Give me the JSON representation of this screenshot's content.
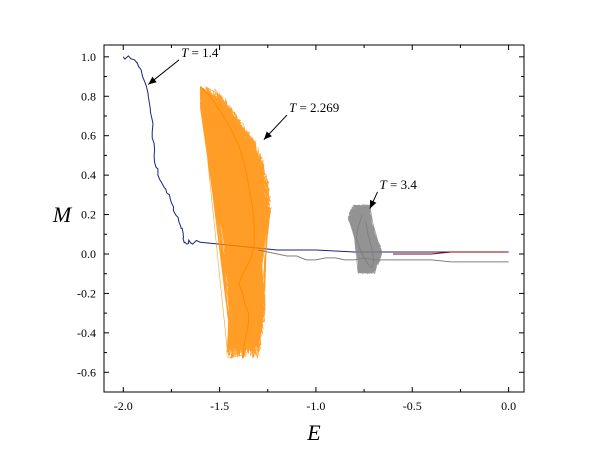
{
  "chart_data": {
    "type": "line",
    "title": "",
    "xlabel": "E",
    "ylabel": "M",
    "xlim": [
      -2.1,
      0.08
    ],
    "ylim": [
      -0.7,
      1.06
    ],
    "grid": false,
    "x_ticks": [
      -2.0,
      -1.5,
      -1.0,
      -0.5,
      0.0
    ],
    "x_tick_labels": [
      "-2.0",
      "-1.5",
      "-1.0",
      "-0.5",
      "0.0"
    ],
    "y_ticks": [
      -0.6,
      -0.4,
      -0.2,
      0.0,
      0.2,
      0.4,
      0.6,
      0.8,
      1.0
    ],
    "y_tick_labels": [
      "-0.6",
      "-0.4",
      "-0.2",
      "0.0",
      "0.2",
      "0.4",
      "0.6",
      "0.8",
      "1.0"
    ],
    "annotations": [
      {
        "var": "T",
        "text": " = 1.4",
        "x": -1.7,
        "y": 1.0,
        "arrow_to": [
          -1.87,
          0.86
        ]
      },
      {
        "var": "T",
        "text": " = 2.269",
        "x": -1.14,
        "y": 0.72,
        "arrow_to": [
          -1.27,
          0.58
        ]
      },
      {
        "var": "T",
        "text": " = 3.4",
        "x": -0.67,
        "y": 0.33,
        "arrow_to": [
          -0.72,
          0.23
        ]
      }
    ],
    "series": [
      {
        "color": "#1a237e",
        "style": "trace",
        "x": [
          -2.0,
          -1.99,
          -1.96,
          -1.93,
          -1.92,
          -1.9,
          -1.88,
          -1.87,
          -1.86,
          -1.85,
          -1.85,
          -1.84,
          -1.84,
          -1.83,
          -1.82,
          -1.8,
          -1.78,
          -1.76,
          -1.75,
          -1.74,
          -1.72,
          -1.71,
          -1.7,
          -1.69,
          -1.69,
          -1.68,
          -1.67,
          -1.66,
          -1.64,
          -1.6,
          -1.5,
          -1.4,
          -1.3,
          -1.2,
          -1.0,
          -0.8,
          -0.5,
          -0.2,
          0.0
        ],
        "y": [
          1.0,
          0.99,
          0.99,
          0.97,
          0.95,
          0.9,
          0.85,
          0.8,
          0.74,
          0.68,
          0.62,
          0.56,
          0.5,
          0.44,
          0.4,
          0.36,
          0.33,
          0.3,
          0.26,
          0.22,
          0.19,
          0.16,
          0.13,
          0.11,
          0.08,
          0.06,
          0.05,
          0.07,
          0.05,
          0.06,
          0.05,
          0.04,
          0.03,
          0.02,
          0.02,
          0.01,
          0.01,
          0.01,
          0.01
        ]
      },
      {
        "color": "#ff8c00",
        "style": "cloud",
        "x_range": [
          -1.6,
          -1.2
        ],
        "y_range": [
          -0.53,
          0.85
        ],
        "x": [
          -1.6,
          -1.55,
          -1.5,
          -1.45,
          -1.4,
          -1.37,
          -1.35,
          -1.33,
          -1.32,
          -1.32,
          -1.33,
          -1.35,
          -1.38,
          -1.4,
          -1.38,
          -1.37,
          -1.35,
          -1.35,
          -1.36,
          -1.37,
          -1.38
        ],
        "y": [
          0.85,
          0.8,
          0.73,
          0.65,
          0.55,
          0.45,
          0.35,
          0.25,
          0.15,
          0.05,
          0.0,
          -0.05,
          -0.1,
          -0.15,
          -0.2,
          -0.25,
          -0.3,
          -0.35,
          -0.4,
          -0.45,
          -0.53
        ]
      },
      {
        "color": "#808080",
        "style": "cloud",
        "x_range": [
          -0.84,
          -0.63
        ],
        "y_range": [
          -0.1,
          0.25
        ],
        "x": [
          -0.76,
          -0.78,
          -0.79,
          -0.77,
          -0.75,
          -0.73,
          -0.71,
          -0.7,
          -0.71,
          -0.73,
          -0.74
        ],
        "y": [
          0.2,
          0.14,
          0.08,
          0.02,
          -0.02,
          -0.05,
          -0.07,
          -0.04,
          0.03,
          0.1,
          0.16
        ]
      },
      {
        "color": "#808080",
        "style": "trace",
        "x": [
          -1.3,
          -1.25,
          -1.2,
          -1.15,
          -1.1,
          -1.05,
          -1.0,
          -0.95,
          -0.9,
          -0.85,
          -0.8,
          -0.75,
          -0.7,
          -0.6,
          -0.5,
          -0.4,
          -0.3,
          -0.2,
          -0.1,
          0.0
        ],
        "y": [
          0.02,
          0.01,
          0.0,
          -0.01,
          -0.01,
          -0.03,
          -0.03,
          -0.02,
          -0.02,
          -0.03,
          -0.03,
          -0.02,
          -0.03,
          -0.03,
          -0.03,
          -0.03,
          -0.04,
          -0.04,
          -0.04,
          -0.04
        ]
      },
      {
        "color": "#8b0000",
        "style": "trace",
        "x": [
          -0.6,
          -0.5,
          -0.4,
          -0.3,
          -0.2,
          -0.1,
          0.0
        ],
        "y": [
          0.0,
          0.0,
          0.0,
          0.01,
          0.01,
          0.01,
          0.01
        ]
      }
    ]
  }
}
